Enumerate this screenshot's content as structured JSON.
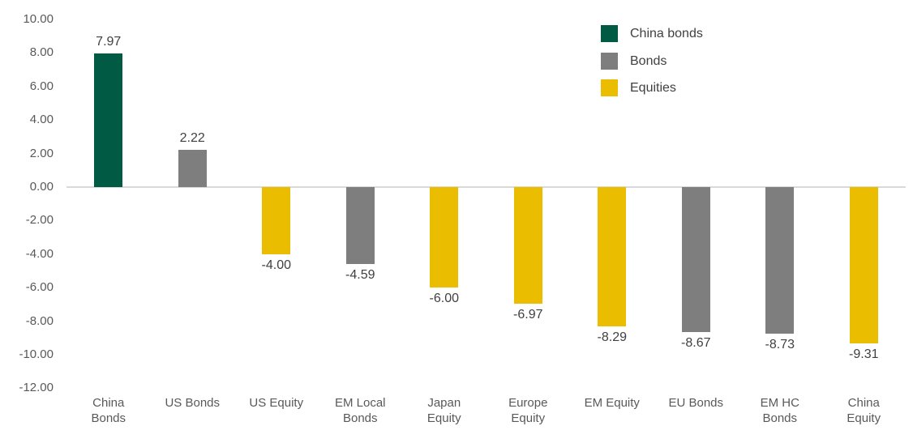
{
  "chart_data": {
    "type": "bar",
    "title": "",
    "xlabel": "",
    "ylabel": "",
    "categories": [
      "China\nBonds",
      "US Bonds",
      "US Equity",
      "EM Local\nBonds",
      "Japan\nEquity",
      "Europe\nEquity",
      "EM Equity",
      "EU Bonds",
      "EM HC\nBonds",
      "China\nEquity"
    ],
    "values": [
      7.97,
      2.22,
      -4.0,
      -4.59,
      -6.0,
      -6.97,
      -8.29,
      -8.67,
      -8.73,
      -9.31
    ],
    "value_labels": [
      "7.97",
      "2.22",
      "-4.00",
      "-4.59",
      "-6.00",
      "-6.97",
      "-8.29",
      "-8.67",
      "-8.73",
      "-9.31"
    ],
    "series_of_bar": [
      "china_bonds",
      "bonds",
      "equities",
      "bonds",
      "equities",
      "equities",
      "equities",
      "bonds",
      "bonds",
      "equities"
    ],
    "ylim": [
      -12,
      10
    ],
    "y_tick_labels": [
      "10.00",
      "8.00",
      "6.00",
      "4.00",
      "2.00",
      "0.00",
      "-2.00",
      "-4.00",
      "-6.00",
      "-8.00",
      "-10.00",
      "-12.00"
    ],
    "y_tick_values": [
      10,
      8,
      6,
      4,
      2,
      0,
      -2,
      -4,
      -6,
      -8,
      -10,
      -12
    ],
    "grid": "zero-axis-line-only",
    "legend": {
      "position": "top-right",
      "items": [
        {
          "key": "china_bonds",
          "label": "China bonds",
          "color": "#005A44"
        },
        {
          "key": "bonds",
          "label": "Bonds",
          "color": "#7E7E7E"
        },
        {
          "key": "equities",
          "label": "Equities",
          "color": "#EBBD00"
        }
      ]
    },
    "colors": {
      "china_bonds": "#005A44",
      "bonds": "#7E7E7E",
      "equities": "#EBBD00",
      "zero_line": "#D9D9D9",
      "tick_text": "#595959",
      "category_text": "#595959",
      "value_text": "#404040",
      "legend_text": "#404040",
      "background": "#FFFFFF"
    }
  }
}
